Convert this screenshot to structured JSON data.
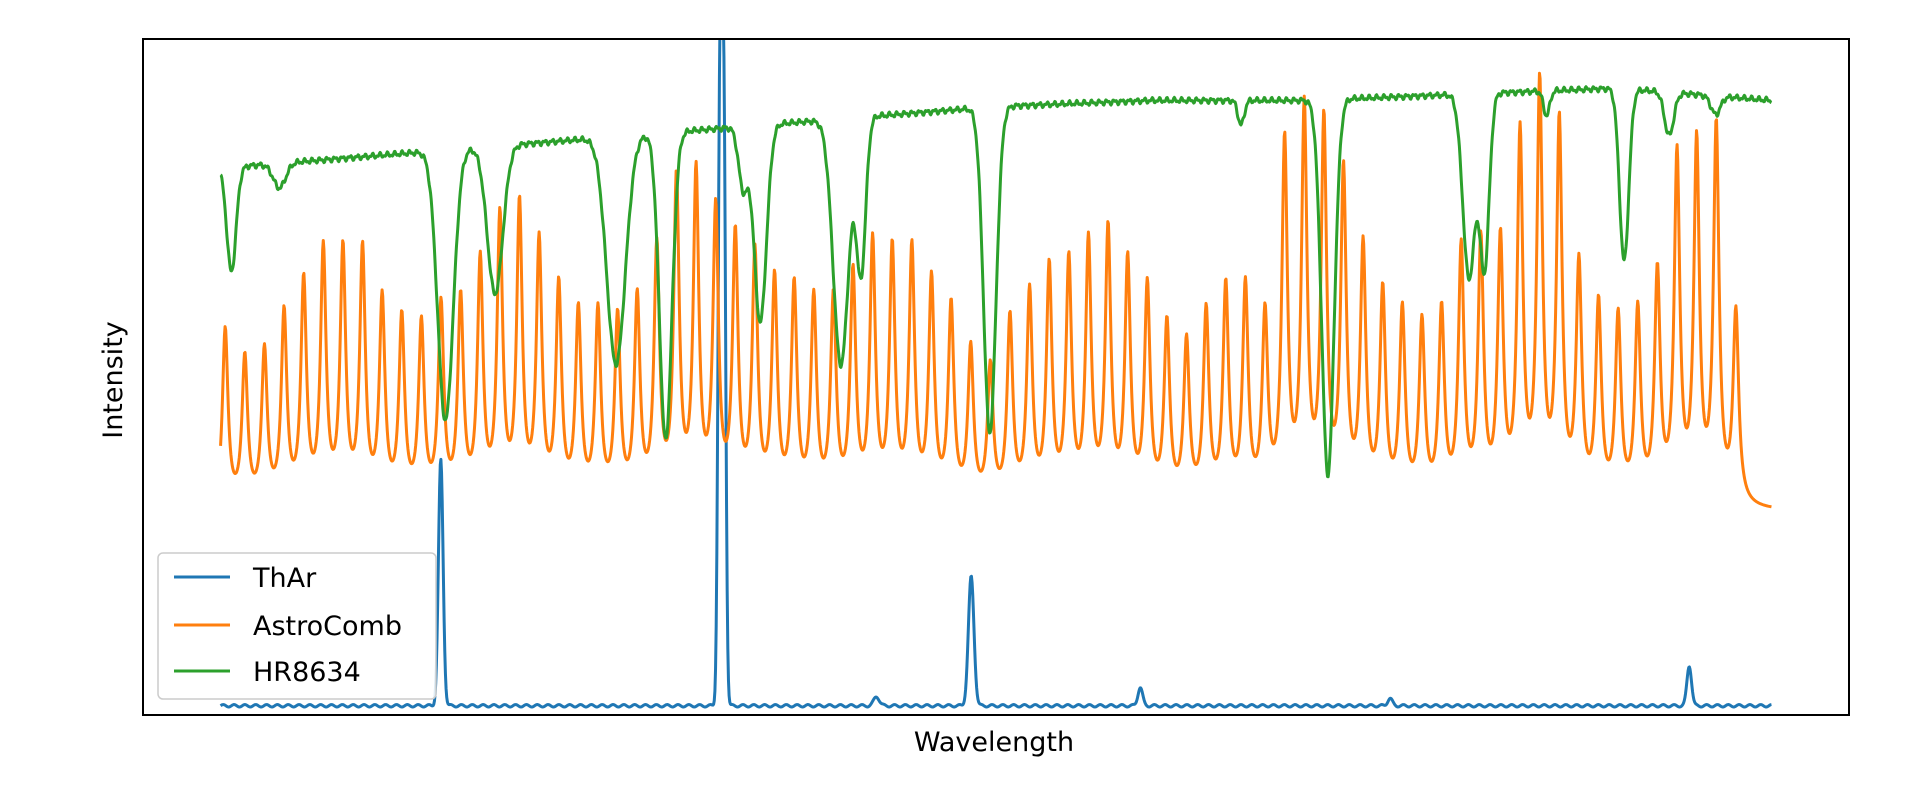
{
  "chart_data": {
    "type": "line",
    "title": "",
    "xlabel": "Wavelength",
    "ylabel": "Intensity",
    "x_ticks": "none",
    "y_ticks": "none",
    "xlim": [
      -0.05,
      1.05
    ],
    "ylim": [
      0,
      1.1
    ],
    "grid": false,
    "legend": {
      "placement": "lower-left",
      "entries": [
        "ThAr",
        "AstroComb",
        "HR8634"
      ]
    },
    "series": [
      {
        "name": "ThAr",
        "color": "#1f77b4",
        "baseline": 0.015,
        "lines": [
          {
            "x": 0.142,
            "height": 0.4,
            "width": 0.0015
          },
          {
            "x": 0.322,
            "height": 1.0,
            "width": 0.0012
          },
          {
            "x": 0.3245,
            "height": 0.96,
            "width": 0.0012
          },
          {
            "x": 0.423,
            "height": 0.015,
            "width": 0.0018
          },
          {
            "x": 0.484,
            "height": 0.21,
            "width": 0.0018
          },
          {
            "x": 0.593,
            "height": 0.03,
            "width": 0.0015
          },
          {
            "x": 0.754,
            "height": 0.012,
            "width": 0.0015
          },
          {
            "x": 0.947,
            "height": 0.065,
            "width": 0.0015
          }
        ]
      },
      {
        "name": "AstroComb",
        "color": "#ff7f0e",
        "baseline": 0.33,
        "comb_start": 0.003,
        "comb_spacing": 0.01265,
        "peak_heights": [
          0.62,
          0.57,
          0.58,
          0.64,
          0.69,
          0.74,
          0.74,
          0.74,
          0.66,
          0.63,
          0.62,
          0.65,
          0.66,
          0.72,
          0.79,
          0.81,
          0.75,
          0.68,
          0.64,
          0.64,
          0.63,
          0.66,
          0.74,
          0.85,
          0.86,
          0.8,
          0.76,
          0.73,
          0.69,
          0.68,
          0.66,
          0.66,
          0.7,
          0.75,
          0.74,
          0.74,
          0.69,
          0.65,
          0.58,
          0.55,
          0.63,
          0.67,
          0.71,
          0.72,
          0.75,
          0.77,
          0.72,
          0.68,
          0.62,
          0.59,
          0.64,
          0.68,
          0.68,
          0.63,
          0.91,
          0.96,
          0.94,
          0.86,
          0.74,
          0.67,
          0.64,
          0.62,
          0.64,
          0.74,
          0.75,
          0.75,
          0.92,
          1.0,
          0.94,
          0.71,
          0.65,
          0.63,
          0.64,
          0.7,
          0.89,
          0.91,
          0.94,
          0.64
        ]
      },
      {
        "name": "HR8634",
        "color": "#2ca02c",
        "continuum": [
          [
            0.0,
            0.89
          ],
          [
            0.1,
            0.91
          ],
          [
            0.2,
            0.93
          ],
          [
            0.3,
            0.95
          ],
          [
            0.4,
            0.97
          ],
          [
            0.5,
            0.99
          ],
          [
            0.6,
            1.0
          ],
          [
            0.7,
            1.0
          ],
          [
            0.8,
            1.01
          ],
          [
            0.9,
            1.02
          ],
          [
            1.0,
            1.0
          ]
        ],
        "absorption_lines": [
          {
            "x": 0.007,
            "depth": 0.17,
            "width": 0.003
          },
          {
            "x": 0.038,
            "depth": 0.04,
            "width": 0.004
          },
          {
            "x": 0.145,
            "depth": 0.44,
            "width": 0.005
          },
          {
            "x": 0.177,
            "depth": 0.24,
            "width": 0.005
          },
          {
            "x": 0.255,
            "depth": 0.37,
            "width": 0.006
          },
          {
            "x": 0.287,
            "depth": 0.5,
            "width": 0.004
          },
          {
            "x": 0.337,
            "depth": 0.1,
            "width": 0.003
          },
          {
            "x": 0.348,
            "depth": 0.32,
            "width": 0.004
          },
          {
            "x": 0.4,
            "depth": 0.4,
            "width": 0.005
          },
          {
            "x": 0.413,
            "depth": 0.25,
            "width": 0.003
          },
          {
            "x": 0.496,
            "depth": 0.53,
            "width": 0.004
          },
          {
            "x": 0.658,
            "depth": 0.04,
            "width": 0.002
          },
          {
            "x": 0.714,
            "depth": 0.61,
            "width": 0.004
          },
          {
            "x": 0.805,
            "depth": 0.3,
            "width": 0.004
          },
          {
            "x": 0.815,
            "depth": 0.28,
            "width": 0.003
          },
          {
            "x": 0.855,
            "depth": 0.04,
            "width": 0.002
          },
          {
            "x": 0.905,
            "depth": 0.28,
            "width": 0.003
          },
          {
            "x": 0.934,
            "depth": 0.07,
            "width": 0.003
          },
          {
            "x": 0.964,
            "depth": 0.03,
            "width": 0.003
          }
        ]
      }
    ]
  }
}
